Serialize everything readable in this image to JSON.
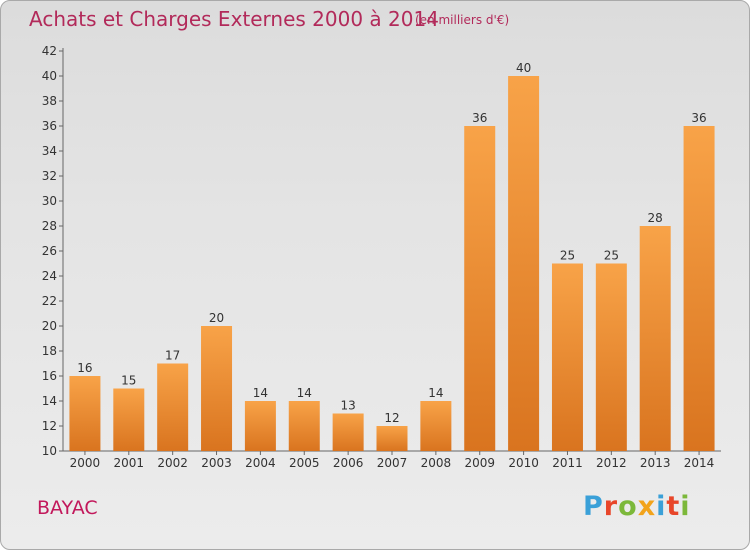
{
  "header": {
    "title": "Achats et Charges Externes 2000 à 2014",
    "subtitle": "(en milliers d'€)"
  },
  "footer": {
    "place": "BAYAC",
    "logo": "Proxiti",
    "logo_colors": [
      "#3aa0d8",
      "#e8462a",
      "#7cb83a",
      "#f2a31b",
      "#3aa0d8",
      "#e8462a",
      "#7cb83a"
    ]
  },
  "colors": {
    "bar_top": "#f8a348",
    "bar_bottom": "#d9741f",
    "accent": "#b22a5a"
  },
  "chart_data": {
    "type": "bar",
    "title": "Achats et Charges Externes 2000 à 2014",
    "subtitle": "(en milliers d'€)",
    "xlabel": "",
    "ylabel": "",
    "categories": [
      "2000",
      "2001",
      "2002",
      "2003",
      "2004",
      "2005",
      "2006",
      "2007",
      "2008",
      "2009",
      "2010",
      "2011",
      "2012",
      "2013",
      "2014"
    ],
    "values": [
      16,
      15,
      17,
      20,
      14,
      14,
      13,
      12,
      14,
      36,
      40,
      25,
      25,
      28,
      36
    ],
    "ylim": [
      10,
      42
    ],
    "yticks": [
      10,
      12,
      14,
      16,
      18,
      20,
      22,
      24,
      26,
      28,
      30,
      32,
      34,
      36,
      38,
      40,
      42
    ],
    "grid": false,
    "legend": "none"
  }
}
